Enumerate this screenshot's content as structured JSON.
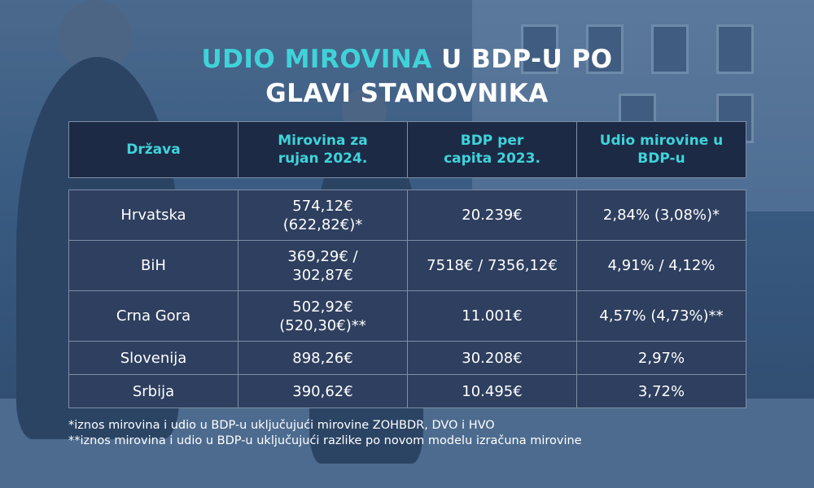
{
  "title": {
    "line1_highlight": "UDIO MIROVINA",
    "line1_rest": " U BDP-U PO",
    "line2": "GLAVI STANOVNIKA"
  },
  "colors": {
    "accent": "#3fd3d9",
    "header_bg": "#1c2a45",
    "row_bg": "#2e3f5f",
    "text": "#ffffff"
  },
  "table": {
    "headers": [
      "Država",
      "Mirovina za rujan 2024.",
      "BDP per capita 2023.",
      "Udio mirovine u BDP-u"
    ],
    "rows": [
      {
        "country": "Hrvatska",
        "pension": "574,12€\n(622,82€)*",
        "gdp": "20.239€",
        "share": "2,84% (3,08%)*"
      },
      {
        "country": "BiH",
        "pension": "369,29€ /\n302,87€",
        "gdp": "7518€ / 7356,12€",
        "share": "4,91% / 4,12%"
      },
      {
        "country": "Crna Gora",
        "pension": "502,92€\n(520,30€)**",
        "gdp": "11.001€",
        "share": "4,57% (4,73%)**"
      },
      {
        "country": "Slovenija",
        "pension": "898,26€",
        "gdp": "30.208€",
        "share": "2,97%"
      },
      {
        "country": "Srbija",
        "pension": "390,62€",
        "gdp": "10.495€",
        "share": "3,72%"
      }
    ]
  },
  "notes": [
    "*iznos mirovina i udio u BDP-u uključujući mirovine ZOHBDR, DVO i HVO",
    "**iznos mirovina i udio u BDP-u uključujući razlike po novom modelu izračuna mirovine"
  ]
}
